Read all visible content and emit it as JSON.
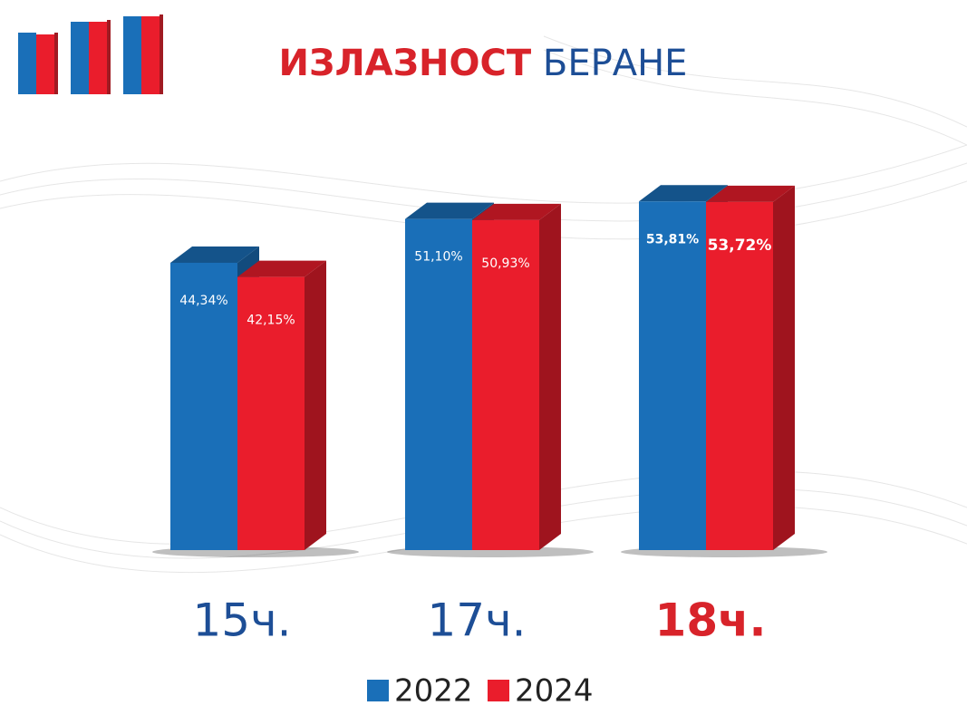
{
  "chart_data": {
    "type": "bar3d",
    "title": [
      "ИЗЛАЗНОСТ",
      "БЕРАНЕ"
    ],
    "categories": [
      "15ч.",
      "17ч.",
      "18ч."
    ],
    "series": [
      {
        "name": "2022",
        "color": "#1a6fb8",
        "values": [
          44.34,
          51.1,
          53.81
        ],
        "value_labels": [
          "44,34%",
          "51,10%",
          "53,81%"
        ]
      },
      {
        "name": "2024",
        "color": "#ea1d2c",
        "values": [
          42.15,
          50.93,
          53.72
        ],
        "value_labels": [
          "42,15%",
          "50,93%",
          "53,72%"
        ]
      }
    ]
  }
}
